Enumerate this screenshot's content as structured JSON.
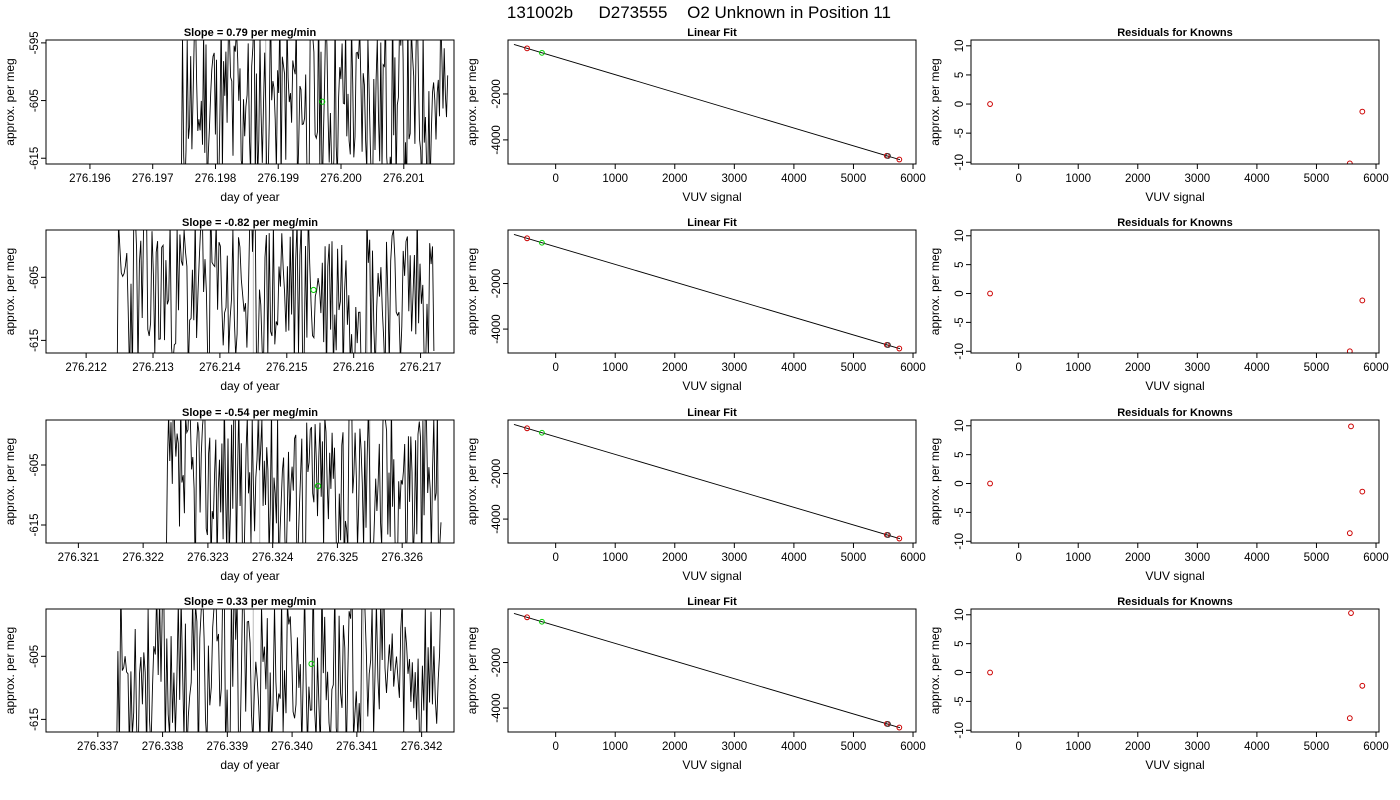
{
  "figure": {
    "title_id": "131002b",
    "title_sample": "D273555",
    "title_desc": "O2 Unknown in Position  11"
  },
  "chart_data": [
    {
      "type": "line",
      "panel": "row1-trace",
      "title": "Slope =  0.79  per meg/min",
      "xlabel": "day of year",
      "ylabel": "approx. per meg",
      "xlim": [
        276.1953,
        276.2018
      ],
      "ylim": [
        -616,
        -594.5
      ],
      "xticks": [
        276.196,
        276.197,
        276.198,
        276.199,
        276.2,
        276.201
      ],
      "xtick_labels": [
        "276.196",
        "276.197",
        "276.198",
        "276.199",
        "276.200",
        "276.201"
      ],
      "yticks": [
        -595,
        -605,
        -615
      ],
      "ytick_labels": [
        "-595",
        "-605",
        "-615"
      ],
      "x_start": 276.1974,
      "x_end": 276.2017,
      "seed": 11,
      "marker": {
        "x": 276.1997,
        "y": -605.2,
        "color": "#00cc00"
      },
      "gray_lines": [
        276.1988
      ]
    },
    {
      "type": "scatter",
      "panel": "row1-fit",
      "title": "Linear Fit",
      "xlabel": "VUV signal",
      "ylabel": "approx. per meg",
      "xlim": [
        -800,
        6050
      ],
      "ylim": [
        -5050,
        350
      ],
      "xticks": [
        0,
        1000,
        2000,
        3000,
        4000,
        5000,
        6000
      ],
      "xtick_labels": [
        "0",
        "1000",
        "2000",
        "3000",
        "4000",
        "5000",
        "6000"
      ],
      "yticks": [
        -2000,
        -4000
      ],
      "ytick_labels": [
        "-2000",
        "-4000"
      ],
      "line": {
        "x": [
          -700,
          5780
        ],
        "y": [
          156,
          -4862
        ]
      },
      "points": [
        {
          "x": -480,
          "y": -14,
          "color": "#cc0000"
        },
        {
          "x": -230,
          "y": -210,
          "color": "#00cc00"
        },
        {
          "x": 5560,
          "y": -4693,
          "color": "#cc0000"
        },
        {
          "x": 5580,
          "y": -4700,
          "color": "#333333"
        },
        {
          "x": 5770,
          "y": -4855,
          "color": "#cc0000"
        }
      ]
    },
    {
      "type": "scatter",
      "panel": "row1-residuals",
      "title": "Residuals for Knowns",
      "xlabel": "VUV signal",
      "ylabel": "approx. per meg",
      "xlim": [
        -800,
        6050
      ],
      "ylim": [
        -10.3,
        11
      ],
      "xticks": [
        0,
        1000,
        2000,
        3000,
        4000,
        5000,
        6000
      ],
      "xtick_labels": [
        "0",
        "1000",
        "2000",
        "3000",
        "4000",
        "5000",
        "6000"
      ],
      "yticks": [
        10,
        5,
        0,
        -5,
        -10
      ],
      "ytick_labels": [
        "10",
        "5",
        "0",
        "-5",
        "-10"
      ],
      "points": [
        {
          "x": -480,
          "y": 0,
          "color": "#cc0000"
        },
        {
          "x": 5560,
          "y": -10.2,
          "color": "#cc0000"
        },
        {
          "x": 5770,
          "y": -1.3,
          "color": "#cc0000"
        }
      ]
    },
    {
      "type": "line",
      "panel": "row2-trace",
      "title": "Slope =  -0.82  per meg/min",
      "xlabel": "day of year",
      "ylabel": "approx. per meg",
      "xlim": [
        276.2114,
        276.2175
      ],
      "ylim": [
        -617,
        -597.5
      ],
      "xticks": [
        276.212,
        276.213,
        276.214,
        276.215,
        276.216,
        276.217
      ],
      "xtick_labels": [
        "276.212",
        "276.213",
        "276.214",
        "276.215",
        "276.216",
        "276.217"
      ],
      "yticks": [
        -605,
        -615
      ],
      "ytick_labels": [
        "-605",
        "-615"
      ],
      "x_start": 276.2124,
      "x_end": 276.2172,
      "seed": 23,
      "marker": {
        "x": 276.2154,
        "y": -607,
        "color": "#00cc00"
      },
      "gray_lines": [
        276.2145,
        276.2162
      ]
    },
    {
      "type": "scatter",
      "panel": "row2-fit",
      "title": "Linear Fit",
      "xlabel": "VUV signal",
      "ylabel": "approx. per meg",
      "xlim": [
        -800,
        6050
      ],
      "ylim": [
        -5050,
        350
      ],
      "xticks": [
        0,
        1000,
        2000,
        3000,
        4000,
        5000,
        6000
      ],
      "xtick_labels": [
        "0",
        "1000",
        "2000",
        "3000",
        "4000",
        "5000",
        "6000"
      ],
      "yticks": [
        -2000,
        -4000
      ],
      "ytick_labels": [
        "-2000",
        "-4000"
      ],
      "line": {
        "x": [
          -700,
          5780
        ],
        "y": [
          156,
          -4862
        ]
      },
      "points": [
        {
          "x": -480,
          "y": -14,
          "color": "#cc0000"
        },
        {
          "x": -230,
          "y": -210,
          "color": "#00cc00"
        },
        {
          "x": 5560,
          "y": -4693,
          "color": "#cc0000"
        },
        {
          "x": 5580,
          "y": -4700,
          "color": "#333333"
        },
        {
          "x": 5770,
          "y": -4855,
          "color": "#cc0000"
        }
      ]
    },
    {
      "type": "scatter",
      "panel": "row2-residuals",
      "title": "Residuals for Knowns",
      "xlabel": "VUV signal",
      "ylabel": "approx. per meg",
      "xlim": [
        -800,
        6050
      ],
      "ylim": [
        -10.3,
        11
      ],
      "xticks": [
        0,
        1000,
        2000,
        3000,
        4000,
        5000,
        6000
      ],
      "xtick_labels": [
        "0",
        "1000",
        "2000",
        "3000",
        "4000",
        "5000",
        "6000"
      ],
      "yticks": [
        10,
        5,
        0,
        -5,
        -10
      ],
      "ytick_labels": [
        "10",
        "5",
        "0",
        "-5",
        "-10"
      ],
      "points": [
        {
          "x": -480,
          "y": 0,
          "color": "#cc0000"
        },
        {
          "x": 5560,
          "y": -10,
          "color": "#cc0000"
        },
        {
          "x": 5770,
          "y": -1.2,
          "color": "#cc0000"
        }
      ]
    },
    {
      "type": "line",
      "panel": "row3-trace",
      "title": "Slope =  -0.54  per meg/min",
      "xlabel": "day of year",
      "ylabel": "approx. per meg",
      "xlim": [
        276.3205,
        276.3268
      ],
      "ylim": [
        -618,
        -597.5
      ],
      "xticks": [
        276.321,
        276.322,
        276.323,
        276.324,
        276.325,
        276.326
      ],
      "xtick_labels": [
        "276.321",
        "276.322",
        "276.323",
        "276.324",
        "276.325",
        "276.326"
      ],
      "yticks": [
        -605,
        -615
      ],
      "ytick_labels": [
        "-605",
        "-615"
      ],
      "x_start": 276.3223,
      "x_end": 276.3266,
      "seed": 37,
      "marker": {
        "x": 276.3247,
        "y": -608.5,
        "color": "#00cc00"
      },
      "gray_lines": [
        276.3238,
        276.3255
      ]
    },
    {
      "type": "scatter",
      "panel": "row3-fit",
      "title": "Linear Fit",
      "xlabel": "VUV signal",
      "ylabel": "approx. per meg",
      "xlim": [
        -800,
        6050
      ],
      "ylim": [
        -5050,
        350
      ],
      "xticks": [
        0,
        1000,
        2000,
        3000,
        4000,
        5000,
        6000
      ],
      "xtick_labels": [
        "0",
        "1000",
        "2000",
        "3000",
        "4000",
        "5000",
        "6000"
      ],
      "yticks": [
        -2000,
        -4000
      ],
      "ytick_labels": [
        "-2000",
        "-4000"
      ],
      "line": {
        "x": [
          -700,
          5780
        ],
        "y": [
          156,
          -4862
        ]
      },
      "points": [
        {
          "x": -480,
          "y": -14,
          "color": "#cc0000"
        },
        {
          "x": -230,
          "y": -210,
          "color": "#00cc00"
        },
        {
          "x": 5560,
          "y": -4693,
          "color": "#cc0000"
        },
        {
          "x": 5580,
          "y": -4700,
          "color": "#333333"
        },
        {
          "x": 5770,
          "y": -4855,
          "color": "#cc0000"
        }
      ]
    },
    {
      "type": "scatter",
      "panel": "row3-residuals",
      "title": "Residuals for Knowns",
      "xlabel": "VUV signal",
      "ylabel": "approx. per meg",
      "xlim": [
        -800,
        6050
      ],
      "ylim": [
        -10.3,
        11
      ],
      "xticks": [
        0,
        1000,
        2000,
        3000,
        4000,
        5000,
        6000
      ],
      "xtick_labels": [
        "0",
        "1000",
        "2000",
        "3000",
        "4000",
        "5000",
        "6000"
      ],
      "yticks": [
        10,
        5,
        0,
        -5,
        -10
      ],
      "ytick_labels": [
        "10",
        "5",
        "0",
        "-5",
        "-10"
      ],
      "points": [
        {
          "x": -480,
          "y": 0,
          "color": "#cc0000"
        },
        {
          "x": 5560,
          "y": -8.6,
          "color": "#cc0000"
        },
        {
          "x": 5580,
          "y": 9.9,
          "color": "#cc0000"
        },
        {
          "x": 5770,
          "y": -1.4,
          "color": "#cc0000"
        }
      ]
    },
    {
      "type": "line",
      "panel": "row4-trace",
      "title": "Slope =  0.33  per meg/min",
      "xlabel": "day of year",
      "ylabel": "approx. per meg",
      "xlim": [
        276.3362,
        276.3425
      ],
      "ylim": [
        -617,
        -597.5
      ],
      "xticks": [
        276.337,
        276.338,
        276.339,
        276.34,
        276.341,
        276.342
      ],
      "xtick_labels": [
        "276.337",
        "276.338",
        "276.339",
        "276.340",
        "276.341",
        "276.342"
      ],
      "yticks": [
        -605,
        -615
      ],
      "ytick_labels": [
        "-605",
        "-615"
      ],
      "x_start": 276.3372,
      "x_end": 276.3423,
      "seed": 53,
      "marker": {
        "x": 276.3403,
        "y": -606.2,
        "color": "#00cc00"
      },
      "gray_lines": [
        276.3394,
        276.3411
      ]
    },
    {
      "type": "scatter",
      "panel": "row4-fit",
      "title": "Linear Fit",
      "xlabel": "VUV signal",
      "ylabel": "approx. per meg",
      "xlim": [
        -800,
        6050
      ],
      "ylim": [
        -5050,
        350
      ],
      "xticks": [
        0,
        1000,
        2000,
        3000,
        4000,
        5000,
        6000
      ],
      "xtick_labels": [
        "0",
        "1000",
        "2000",
        "3000",
        "4000",
        "5000",
        "6000"
      ],
      "yticks": [
        -2000,
        -4000
      ],
      "ytick_labels": [
        "-2000",
        "-4000"
      ],
      "line": {
        "x": [
          -700,
          5780
        ],
        "y": [
          156,
          -4862
        ]
      },
      "points": [
        {
          "x": -480,
          "y": -14,
          "color": "#cc0000"
        },
        {
          "x": -230,
          "y": -210,
          "color": "#00cc00"
        },
        {
          "x": 5560,
          "y": -4693,
          "color": "#cc0000"
        },
        {
          "x": 5580,
          "y": -4700,
          "color": "#333333"
        },
        {
          "x": 5770,
          "y": -4855,
          "color": "#cc0000"
        }
      ]
    },
    {
      "type": "scatter",
      "panel": "row4-residuals",
      "title": "Residuals for Knowns",
      "xlabel": "VUV signal",
      "ylabel": "approx. per meg",
      "xlim": [
        -800,
        6050
      ],
      "ylim": [
        -10.3,
        11
      ],
      "xticks": [
        0,
        1000,
        2000,
        3000,
        4000,
        5000,
        6000
      ],
      "xtick_labels": [
        "0",
        "1000",
        "2000",
        "3000",
        "4000",
        "5000",
        "6000"
      ],
      "yticks": [
        10,
        5,
        0,
        -5,
        -10
      ],
      "ytick_labels": [
        "10",
        "5",
        "0",
        "-5",
        "-10"
      ],
      "points": [
        {
          "x": -480,
          "y": 0,
          "color": "#cc0000"
        },
        {
          "x": 5560,
          "y": -7.9,
          "color": "#cc0000"
        },
        {
          "x": 5580,
          "y": 10.3,
          "color": "#cc0000"
        },
        {
          "x": 5770,
          "y": -2.3,
          "color": "#cc0000"
        }
      ]
    }
  ]
}
